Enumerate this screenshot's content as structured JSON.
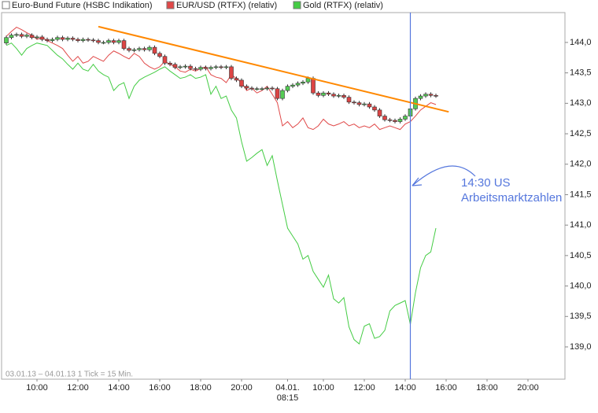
{
  "chart_data": {
    "type": "candlestick",
    "footnote": "03.01.13 – 04.01.13   1 Tick = 15 Min.",
    "categories": [
      null,
      null,
      null,
      null,
      null,
      null,
      "10:00",
      null,
      null,
      null,
      null,
      null,
      null,
      null,
      "12:00",
      null,
      null,
      null,
      null,
      null,
      null,
      null,
      "14:00",
      null,
      null,
      null,
      null,
      null,
      null,
      null,
      "16:00",
      null,
      null,
      null,
      null,
      null,
      null,
      null,
      "18:00",
      null,
      null,
      null,
      null,
      null,
      null,
      null,
      "20:00",
      null,
      null,
      null,
      null,
      null,
      null,
      null,
      null,
      "04.01.\n08:15",
      null,
      null,
      null,
      null,
      null,
      null,
      "10:00",
      null,
      null,
      null,
      null,
      null,
      null,
      null,
      "12:00",
      null,
      null,
      null,
      null,
      null,
      null,
      null,
      "14:00",
      null,
      null,
      null,
      null,
      null,
      null,
      null,
      "16:00",
      null,
      null,
      null,
      null,
      null,
      null,
      null,
      "18:00",
      null,
      null,
      null,
      null,
      null,
      null,
      null,
      "20:00",
      null,
      null,
      null,
      null,
      null,
      null,
      null
    ],
    "ylim": [
      138.47,
      144.49
    ],
    "yticks": [
      {
        "value": 139,
        "label": "139,0"
      },
      {
        "value": 139.5,
        "label": "139,5"
      },
      {
        "value": 140,
        "label": "140,0"
      },
      {
        "value": 140.5,
        "label": "140,5"
      },
      {
        "value": 141,
        "label": "141,0"
      },
      {
        "value": 141.5,
        "label": "141,5"
      },
      {
        "value": 142,
        "label": "142,0"
      },
      {
        "value": 142.5,
        "label": "142,5"
      },
      {
        "value": 143,
        "label": "143,0"
      },
      {
        "value": 143.5,
        "label": "143,5"
      },
      {
        "value": 144,
        "label": "144,0"
      }
    ],
    "up_color": "#55cc55",
    "down_color": "#dd4444",
    "series": [
      {
        "name": "Euro-Bund Future (HSBC Indikation)",
        "type": "candlestick",
        "color": "#ffffff",
        "open": [
          143.99,
          144.08,
          144.12,
          144.13,
          144.1,
          144.12,
          144.08,
          144.09,
          144.05,
          144.03,
          144.05,
          144.08,
          144.05,
          144.07,
          144.05,
          144.03,
          144.05,
          144.04,
          144.03,
          144.0,
          144.0,
          144.03,
          144.0,
          144.03,
          143.9,
          143.87,
          143.88,
          143.9,
          143.88,
          143.92,
          143.82,
          143.77,
          143.66,
          143.64,
          143.59,
          143.6,
          143.61,
          143.57,
          143.56,
          143.59,
          143.57,
          143.59,
          143.6,
          143.59,
          143.6,
          143.41,
          143.38,
          143.28,
          143.25,
          143.24,
          143.24,
          143.24,
          143.25,
          143.24,
          143.08,
          143.21,
          143.28,
          143.3,
          143.33,
          143.35,
          143.41,
          143.17,
          143.13,
          143.17,
          143.15,
          143.12,
          143.13,
          143.1,
          143.02,
          143.01,
          142.98,
          142.99,
          142.94,
          142.89,
          142.79,
          142.73,
          142.72,
          142.7,
          142.74,
          142.79,
          142.91,
          143.08,
          143.12,
          143.15,
          143.13,
          null,
          null,
          null,
          null,
          null,
          null,
          null,
          null,
          null,
          null,
          null,
          null,
          null,
          null,
          null,
          null,
          null,
          null,
          null,
          null,
          null,
          null,
          null,
          null,
          null
        ],
        "high": [
          144.11,
          144.15,
          144.16,
          144.16,
          144.15,
          144.15,
          144.12,
          144.12,
          144.08,
          144.08,
          144.11,
          144.11,
          144.1,
          144.1,
          144.08,
          144.08,
          144.08,
          144.07,
          144.06,
          144.03,
          144.06,
          144.06,
          144.06,
          144.06,
          143.93,
          143.91,
          143.93,
          143.93,
          143.95,
          143.95,
          143.85,
          143.8,
          143.69,
          143.67,
          143.63,
          143.64,
          143.64,
          143.6,
          143.62,
          143.62,
          143.62,
          143.63,
          143.63,
          143.63,
          143.63,
          143.44,
          143.41,
          143.31,
          143.28,
          143.27,
          143.27,
          143.28,
          143.28,
          143.27,
          143.24,
          143.31,
          143.33,
          143.36,
          143.38,
          143.44,
          143.44,
          143.2,
          143.2,
          143.2,
          143.18,
          143.16,
          143.16,
          143.13,
          143.05,
          143.04,
          143.02,
          143.02,
          142.97,
          142.92,
          142.82,
          142.76,
          142.75,
          142.77,
          142.82,
          142.94,
          143.11,
          143.15,
          143.18,
          143.18,
          143.16,
          null,
          null,
          null,
          null,
          null,
          null,
          null,
          null,
          null,
          null,
          null,
          null,
          null,
          null,
          null,
          null,
          null,
          null,
          null,
          null,
          null,
          null,
          null,
          null,
          null
        ],
        "low": [
          143.96,
          144.05,
          144.09,
          144.07,
          144.07,
          144.05,
          144.05,
          144.02,
          144.0,
          144.0,
          144.02,
          144.02,
          144.02,
          144.02,
          144.0,
          144.0,
          144.01,
          144.0,
          143.97,
          143.97,
          143.97,
          143.97,
          143.97,
          143.87,
          143.84,
          143.84,
          143.85,
          143.85,
          143.85,
          143.79,
          143.74,
          143.63,
          143.61,
          143.56,
          143.56,
          143.57,
          143.54,
          143.53,
          143.53,
          143.54,
          143.54,
          143.56,
          143.56,
          143.56,
          143.38,
          143.35,
          143.25,
          143.22,
          143.21,
          143.21,
          143.21,
          143.21,
          143.21,
          143.05,
          143.05,
          143.18,
          143.25,
          143.27,
          143.3,
          143.32,
          143.14,
          143.1,
          143.1,
          143.12,
          143.09,
          143.09,
          143.07,
          142.99,
          142.98,
          142.95,
          142.95,
          142.91,
          142.86,
          142.76,
          142.7,
          142.69,
          142.67,
          142.67,
          142.71,
          142.76,
          142.88,
          143.05,
          143.09,
          143.1,
          143.09,
          null,
          null,
          null,
          null,
          null,
          null,
          null,
          null,
          null,
          null,
          null,
          null,
          null,
          null,
          null,
          null,
          null,
          null,
          null,
          null,
          null,
          null,
          null,
          null,
          null
        ],
        "close": [
          144.08,
          144.12,
          144.13,
          144.1,
          144.12,
          144.08,
          144.09,
          144.05,
          144.03,
          144.05,
          144.08,
          144.05,
          144.07,
          144.05,
          144.03,
          144.05,
          144.04,
          144.03,
          144.0,
          144.0,
          144.03,
          144.0,
          144.03,
          143.9,
          143.87,
          143.88,
          143.9,
          143.88,
          143.92,
          143.82,
          143.77,
          143.66,
          143.64,
          143.59,
          143.6,
          143.61,
          143.57,
          143.56,
          143.59,
          143.57,
          143.59,
          143.6,
          143.59,
          143.6,
          143.41,
          143.38,
          143.28,
          143.25,
          143.24,
          143.24,
          143.24,
          143.25,
          143.24,
          143.08,
          143.21,
          143.28,
          143.3,
          143.33,
          143.35,
          143.41,
          143.17,
          143.13,
          143.17,
          143.15,
          143.12,
          143.13,
          143.1,
          143.02,
          143.01,
          142.98,
          142.99,
          142.94,
          142.89,
          142.79,
          142.73,
          142.72,
          142.7,
          142.74,
          142.79,
          142.91,
          143.08,
          143.12,
          143.15,
          143.13,
          143.12,
          null,
          null,
          null,
          null,
          null,
          null,
          null,
          null,
          null,
          null,
          null,
          null,
          null,
          null,
          null,
          null,
          null,
          null,
          null,
          null,
          null,
          null,
          null,
          null,
          null
        ]
      },
      {
        "name": "EUR/USD (RTFX) (relativ)",
        "type": "line",
        "color": "#e04848",
        "values": [
          144.1,
          144.18,
          144.25,
          144.21,
          144.16,
          144.12,
          144.05,
          144.08,
          144.03,
          143.99,
          143.95,
          143.9,
          143.79,
          143.69,
          143.77,
          143.66,
          143.69,
          143.77,
          143.73,
          143.69,
          143.79,
          143.86,
          143.82,
          143.77,
          143.73,
          143.82,
          143.77,
          143.66,
          143.6,
          143.56,
          143.6,
          143.69,
          143.64,
          143.6,
          143.53,
          143.51,
          143.56,
          143.53,
          143.57,
          143.6,
          143.47,
          143.43,
          143.41,
          143.34,
          143.47,
          143.41,
          143.34,
          143.21,
          143.25,
          143.17,
          143.21,
          143.28,
          143.15,
          143.01,
          142.63,
          142.7,
          142.6,
          142.66,
          142.76,
          142.6,
          142.57,
          142.63,
          142.74,
          142.66,
          142.63,
          142.66,
          142.7,
          142.63,
          142.66,
          142.6,
          142.63,
          142.6,
          142.66,
          142.57,
          142.6,
          142.63,
          142.6,
          142.57,
          142.66,
          142.7,
          142.79,
          142.89,
          142.95,
          143.01,
          142.98,
          null,
          null,
          null,
          null,
          null,
          null,
          null,
          null,
          null,
          null,
          null,
          null,
          null,
          null,
          null,
          null,
          null,
          null,
          null,
          null,
          null,
          null,
          null,
          null,
          null
        ]
      },
      {
        "name": "Gold (RTFX) (relativ)",
        "type": "line",
        "color": "#44cc44",
        "values": [
          143.95,
          143.99,
          143.9,
          143.79,
          143.9,
          143.95,
          143.99,
          143.97,
          143.95,
          143.87,
          143.79,
          143.73,
          143.64,
          143.56,
          143.66,
          143.56,
          143.53,
          143.64,
          143.53,
          143.47,
          143.43,
          143.21,
          143.3,
          143.34,
          143.08,
          143.28,
          143.38,
          143.43,
          143.47,
          143.51,
          143.56,
          143.6,
          143.53,
          143.47,
          143.41,
          143.43,
          143.47,
          143.41,
          143.43,
          143.47,
          143.15,
          143.28,
          143.08,
          143.12,
          142.89,
          142.76,
          142.37,
          142.05,
          142.11,
          142.18,
          142.24,
          141.98,
          142.14,
          141.73,
          141.34,
          140.95,
          140.82,
          140.69,
          140.44,
          140.5,
          140.24,
          140.11,
          139.98,
          140.18,
          139.79,
          139.72,
          139.81,
          139.33,
          139.12,
          139.05,
          139.34,
          139.38,
          139.14,
          139.17,
          139.27,
          139.59,
          139.68,
          139.72,
          139.76,
          139.37,
          139.89,
          140.3,
          140.5,
          140.56,
          140.95,
          null,
          null,
          null,
          null,
          null,
          null,
          null,
          null,
          null,
          null,
          null,
          null,
          null,
          null,
          null,
          null,
          null,
          null,
          null,
          null,
          null,
          null,
          null,
          null,
          null
        ]
      }
    ],
    "trend_line": {
      "color": "#ff8800",
      "x": [
        18,
        86.5
      ],
      "values": [
        144.26,
        142.86
      ]
    },
    "event_line": {
      "x": 79,
      "color": "#5577dd",
      "text": [
        "14:30 US",
        "Arbeitsmarktzahlen"
      ]
    }
  }
}
